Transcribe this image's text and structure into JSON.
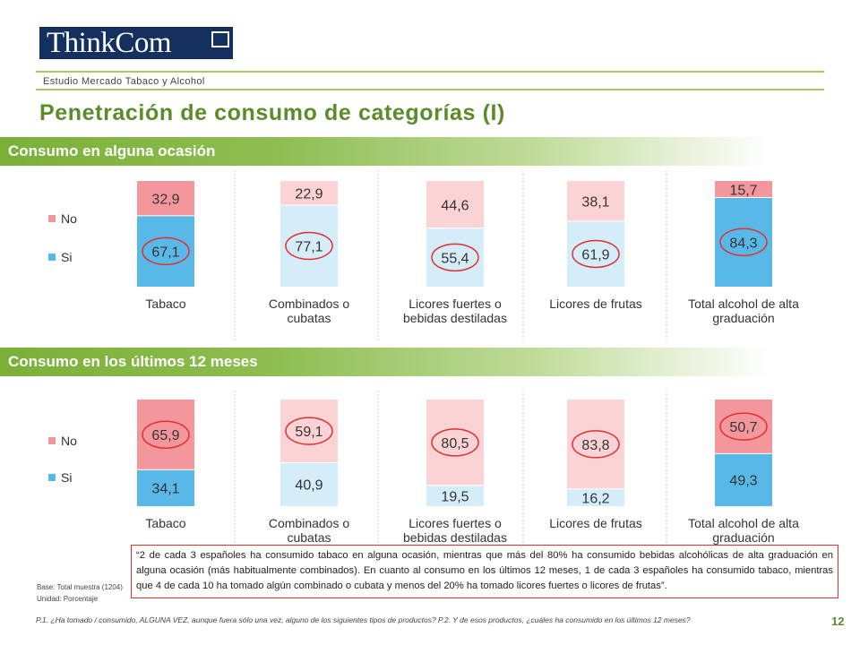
{
  "header": {
    "logo_text": "ThinkCom",
    "study": "Estudio Mercado Tabaco y Alcohol",
    "title": "Penetración de consumo de categorías (I)"
  },
  "colors": {
    "no": "#f4979d",
    "no_light": "#fbd3d5",
    "si": "#58b9e8",
    "si_light": "#d4edf9",
    "accent": "#5a8c2a",
    "highlight_ring": "#e03030"
  },
  "sections": [
    {
      "label": "Consumo en alguna ocasión"
    },
    {
      "label": "Consumo en los últimos 12 meses"
    }
  ],
  "legend": {
    "no": "No",
    "si": "Si"
  },
  "chart_data": [
    {
      "type": "bar",
      "stacked": true,
      "title": "Consumo en alguna ocasión",
      "categories": [
        [
          "Tabaco"
        ],
        [
          "Combinados o",
          "cubatas"
        ],
        [
          "Licores fuertes o",
          "bebidas destiladas"
        ],
        [
          "Licores de frutas"
        ],
        [
          "Total alcohol de alta",
          "graduación"
        ]
      ],
      "series": [
        {
          "name": "Si",
          "values": [
            67.1,
            77.1,
            55.4,
            61.9,
            84.3
          ],
          "labels": [
            "67,1",
            "77,1",
            "55,4",
            "61,9",
            "84,3"
          ]
        },
        {
          "name": "No",
          "values": [
            32.9,
            22.9,
            44.6,
            38.1,
            15.7
          ],
          "labels": [
            "32,9",
            "22,9",
            "44,6",
            "38,1",
            "15,7"
          ]
        }
      ],
      "highlight": {
        "series": "Si",
        "indices": [
          0,
          1,
          2,
          3,
          4
        ]
      },
      "strong_color_index": [
        0,
        4
      ],
      "ylim": [
        0,
        100
      ],
      "legend_position": "left",
      "grid": false
    },
    {
      "type": "bar",
      "stacked": true,
      "title": "Consumo en los últimos 12 meses",
      "categories": [
        [
          "Tabaco"
        ],
        [
          "Combinados o",
          "cubatas"
        ],
        [
          "Licores fuertes o",
          "bebidas destiladas"
        ],
        [
          "Licores de frutas"
        ],
        [
          "Total alcohol de alta",
          "graduación"
        ]
      ],
      "series": [
        {
          "name": "Si",
          "values": [
            34.1,
            40.9,
            19.5,
            16.2,
            49.3
          ],
          "labels": [
            "34,1",
            "40,9",
            "19,5",
            "16,2",
            "49,3"
          ]
        },
        {
          "name": "No",
          "values": [
            65.9,
            59.1,
            80.5,
            83.8,
            50.7
          ],
          "labels": [
            "65,9",
            "59,1",
            "80,5",
            "83,8",
            "50,7"
          ]
        }
      ],
      "highlight": {
        "series": "No",
        "indices": [
          0,
          1,
          2,
          3,
          4
        ]
      },
      "strong_color_index": [
        0,
        4
      ],
      "ylim": [
        0,
        100
      ],
      "legend_position": "left",
      "grid": false
    }
  ],
  "quote": "“2 de cada 3 españoles ha consumido tabaco en alguna ocasión, mientras que más del 80% ha consumido bebidas alcohólicas de alta graduación en alguna ocasión (más habitualmente combinados). En cuanto al consumo en los últimos 12 meses, 1 de cada 3 españoles ha consumido tabaco, mientras que  4 de cada 10 ha tomado algún combinado o cubata y menos del 20% ha tomado licores fuertes o licores de frutas”.",
  "base": "Base: Total muestra (1204)",
  "unidad": "Unidad:  Porcentaje",
  "footnote": "P.1. ¿Ha tomado / consumido, ALGUNA VEZ, aunque fuera sólo una vez, alguno de los siguientes tipos de productos? P.2. Y de esos productos, ¿cuáles ha consumido en los últimos 12 meses?",
  "page_number": "12"
}
